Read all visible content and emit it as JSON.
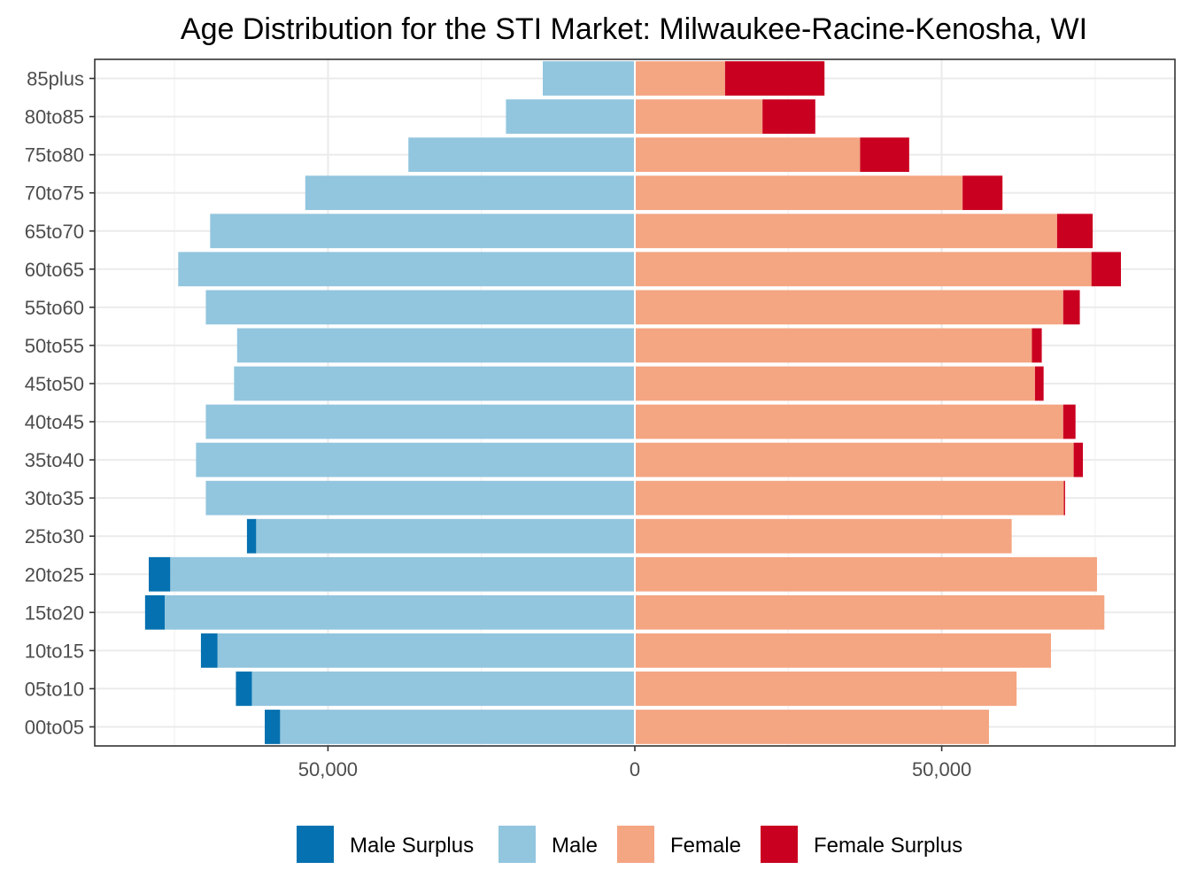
{
  "chart_data": {
    "type": "bar",
    "orientation": "horizontal",
    "layout": "population-pyramid",
    "title": "Age Distribution for the STI Market: Milwaukee-Racine-Kenosha, WI",
    "xlabel": "",
    "ylabel": "",
    "xlim": [
      -88000,
      88000
    ],
    "x_ticks": [
      {
        "value": -50000,
        "label": "50,000"
      },
      {
        "value": 0,
        "label": "0"
      },
      {
        "value": 50000,
        "label": "50,000"
      }
    ],
    "grid": true,
    "legend_position": "bottom",
    "categories": [
      "85plus",
      "80to85",
      "75to80",
      "70to75",
      "65to70",
      "60to65",
      "55to60",
      "50to55",
      "45to50",
      "40to45",
      "35to40",
      "30to35",
      "25to30",
      "20to25",
      "15to20",
      "10to15",
      "05to10",
      "00to05"
    ],
    "series": [
      {
        "name": "Male Surplus",
        "color": "#0571b0",
        "side": "left",
        "values": [
          0,
          0,
          0,
          0,
          0,
          0,
          0,
          0,
          0,
          0,
          0,
          0,
          1500,
          3500,
          3200,
          2700,
          2600,
          2500
        ]
      },
      {
        "name": "Male",
        "color": "#92c5de",
        "side": "left",
        "values": [
          15000,
          21000,
          36900,
          53700,
          69200,
          74400,
          69900,
          64800,
          65300,
          69900,
          71500,
          69900,
          61700,
          75700,
          76600,
          68000,
          62400,
          57800
        ]
      },
      {
        "name": "Female",
        "color": "#f4a582",
        "side": "right",
        "values": [
          14700,
          20800,
          36700,
          53400,
          68800,
          74400,
          69800,
          64700,
          65200,
          69800,
          71500,
          69900,
          61400,
          75300,
          76500,
          67800,
          62200,
          57700
        ]
      },
      {
        "name": "Female Surplus",
        "color": "#ca0020",
        "side": "right",
        "values": [
          16200,
          8600,
          8000,
          6500,
          5800,
          4800,
          2700,
          1600,
          1400,
          2000,
          1500,
          200,
          0,
          0,
          0,
          0,
          0,
          0
        ]
      }
    ]
  }
}
